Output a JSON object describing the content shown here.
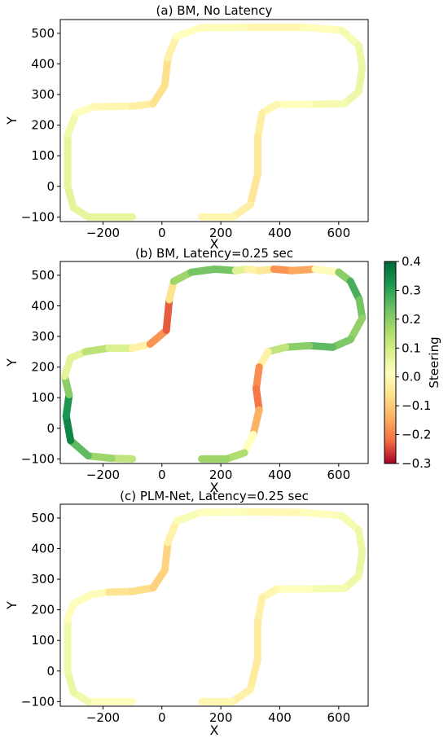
{
  "figure": {
    "colorbar": {
      "label": "Steering",
      "range": [
        -0.3,
        0.4
      ],
      "ticks": [
        "0.4",
        "0.3",
        "0.2",
        "0.1",
        "0.0",
        "−0.1",
        "−0.2",
        "−0.3"
      ],
      "colormap": "RdYlGn",
      "colormap_stops": [
        "#a50026",
        "#f46d43",
        "#fdae61",
        "#fee08b",
        "#ffffbf",
        "#d9ef8b",
        "#a6d96a",
        "#66bd63",
        "#1a9850",
        "#006837"
      ]
    }
  },
  "chart_data": [
    {
      "type": "scatter",
      "title": "(a) BM, No Latency",
      "xlabel": "X",
      "ylabel": "Y",
      "xlim": [
        -345,
        700
      ],
      "ylim": [
        -115,
        545
      ],
      "x_ticks": [
        "−200",
        "0",
        "200",
        "400",
        "600"
      ],
      "x_tick_values": [
        -200,
        0,
        200,
        400,
        600
      ],
      "y_ticks": [
        "−100",
        "0",
        "100",
        "200",
        "300",
        "400",
        "500"
      ],
      "y_tick_values": [
        -100,
        0,
        100,
        200,
        300,
        400,
        500
      ],
      "color_by": "Steering",
      "track": [
        {
          "x": -100,
          "y": -100,
          "s": 0.06
        },
        {
          "x": -250,
          "y": -100,
          "s": 0.06
        },
        {
          "x": -300,
          "y": -70,
          "s": 0.06
        },
        {
          "x": -320,
          "y": 0,
          "s": 0.07
        },
        {
          "x": -320,
          "y": 170,
          "s": 0.05
        },
        {
          "x": -290,
          "y": 240,
          "s": 0.03
        },
        {
          "x": -230,
          "y": 260,
          "s": 0.0
        },
        {
          "x": -100,
          "y": 262,
          "s": -0.02
        },
        {
          "x": -30,
          "y": 270,
          "s": -0.04
        },
        {
          "x": 10,
          "y": 330,
          "s": -0.08
        },
        {
          "x": 20,
          "y": 420,
          "s": -0.05
        },
        {
          "x": 50,
          "y": 490,
          "s": 0.0
        },
        {
          "x": 130,
          "y": 518,
          "s": 0.02
        },
        {
          "x": 300,
          "y": 520,
          "s": -0.02
        },
        {
          "x": 480,
          "y": 520,
          "s": -0.01
        },
        {
          "x": 610,
          "y": 510,
          "s": 0.02
        },
        {
          "x": 668,
          "y": 460,
          "s": 0.04
        },
        {
          "x": 680,
          "y": 390,
          "s": 0.05
        },
        {
          "x": 668,
          "y": 310,
          "s": 0.05
        },
        {
          "x": 620,
          "y": 270,
          "s": 0.04
        },
        {
          "x": 500,
          "y": 268,
          "s": 0.02
        },
        {
          "x": 390,
          "y": 268,
          "s": 0.0
        },
        {
          "x": 340,
          "y": 240,
          "s": -0.02
        },
        {
          "x": 325,
          "y": 160,
          "s": -0.04
        },
        {
          "x": 325,
          "y": 40,
          "s": -0.06
        },
        {
          "x": 300,
          "y": -60,
          "s": -0.04
        },
        {
          "x": 240,
          "y": -100,
          "s": -0.02
        },
        {
          "x": 135,
          "y": -100,
          "s": 0.0
        }
      ]
    },
    {
      "type": "scatter",
      "title": "(b) BM, Latency=0.25 sec",
      "xlabel": "X",
      "ylabel": "Y",
      "xlim": [
        -345,
        700
      ],
      "ylim": [
        -115,
        545
      ],
      "x_ticks": [
        "−200",
        "0",
        "200",
        "400",
        "600"
      ],
      "x_tick_values": [
        -200,
        0,
        200,
        400,
        600
      ],
      "y_ticks": [
        "−100",
        "0",
        "100",
        "200",
        "300",
        "400",
        "500"
      ],
      "y_tick_values": [
        -100,
        0,
        100,
        200,
        300,
        400,
        500
      ],
      "color_by": "Steering",
      "track": [
        {
          "x": -100,
          "y": -100,
          "s": 0.1
        },
        {
          "x": -170,
          "y": -98,
          "s": 0.15
        },
        {
          "x": -250,
          "y": -90,
          "s": 0.2
        },
        {
          "x": -310,
          "y": -40,
          "s": 0.3
        },
        {
          "x": -325,
          "y": 40,
          "s": 0.4
        },
        {
          "x": -315,
          "y": 110,
          "s": 0.25
        },
        {
          "x": -330,
          "y": 170,
          "s": 0.15
        },
        {
          "x": -310,
          "y": 230,
          "s": -0.02
        },
        {
          "x": -260,
          "y": 250,
          "s": 0.15
        },
        {
          "x": -180,
          "y": 262,
          "s": 0.12
        },
        {
          "x": -100,
          "y": 262,
          "s": 0.05
        },
        {
          "x": -40,
          "y": 275,
          "s": -0.1
        },
        {
          "x": 15,
          "y": 320,
          "s": -0.25
        },
        {
          "x": 25,
          "y": 420,
          "s": -0.22
        },
        {
          "x": 40,
          "y": 480,
          "s": 0.1
        },
        {
          "x": 100,
          "y": 510,
          "s": 0.25
        },
        {
          "x": 180,
          "y": 520,
          "s": 0.2
        },
        {
          "x": 250,
          "y": 515,
          "s": 0.25
        },
        {
          "x": 290,
          "y": 520,
          "s": -0.1
        },
        {
          "x": 330,
          "y": 515,
          "s": 0.05
        },
        {
          "x": 380,
          "y": 520,
          "s": -0.15
        },
        {
          "x": 440,
          "y": 515,
          "s": -0.2
        },
        {
          "x": 520,
          "y": 520,
          "s": -0.1
        },
        {
          "x": 600,
          "y": 510,
          "s": 0.1
        },
        {
          "x": 640,
          "y": 480,
          "s": 0.3
        },
        {
          "x": 670,
          "y": 420,
          "s": 0.25
        },
        {
          "x": 680,
          "y": 360,
          "s": 0.2
        },
        {
          "x": 640,
          "y": 290,
          "s": 0.18
        },
        {
          "x": 580,
          "y": 265,
          "s": 0.25
        },
        {
          "x": 500,
          "y": 270,
          "s": 0.25
        },
        {
          "x": 420,
          "y": 265,
          "s": 0.15
        },
        {
          "x": 360,
          "y": 250,
          "s": 0.1
        },
        {
          "x": 330,
          "y": 200,
          "s": -0.15
        },
        {
          "x": 320,
          "y": 130,
          "s": -0.22
        },
        {
          "x": 330,
          "y": 60,
          "s": -0.2
        },
        {
          "x": 310,
          "y": -20,
          "s": -0.08
        },
        {
          "x": 280,
          "y": -80,
          "s": 0.1
        },
        {
          "x": 220,
          "y": -100,
          "s": 0.2
        },
        {
          "x": 135,
          "y": -100,
          "s": 0.15
        }
      ]
    },
    {
      "type": "scatter",
      "title": "(c) PLM-Net, Latency=0.25 sec",
      "xlabel": "X",
      "ylabel": "Y",
      "xlim": [
        -345,
        700
      ],
      "ylim": [
        -115,
        545
      ],
      "x_ticks": [
        "−200",
        "0",
        "200",
        "400",
        "600"
      ],
      "x_tick_values": [
        -200,
        0,
        200,
        400,
        600
      ],
      "y_ticks": [
        "−100",
        "0",
        "100",
        "200",
        "300",
        "400",
        "500"
      ],
      "y_tick_values": [
        -100,
        0,
        100,
        200,
        300,
        400,
        500
      ],
      "color_by": "Steering",
      "track": [
        {
          "x": -100,
          "y": -100,
          "s": 0.0
        },
        {
          "x": -250,
          "y": -100,
          "s": 0.03
        },
        {
          "x": -300,
          "y": -70,
          "s": 0.05
        },
        {
          "x": -320,
          "y": 0,
          "s": 0.05
        },
        {
          "x": -320,
          "y": 170,
          "s": 0.03
        },
        {
          "x": -300,
          "y": 220,
          "s": -0.02
        },
        {
          "x": -240,
          "y": 250,
          "s": 0.05
        },
        {
          "x": -180,
          "y": 258,
          "s": -0.05
        },
        {
          "x": -100,
          "y": 260,
          "s": -0.06
        },
        {
          "x": -30,
          "y": 272,
          "s": -0.08
        },
        {
          "x": 10,
          "y": 330,
          "s": -0.1
        },
        {
          "x": 20,
          "y": 420,
          "s": -0.07
        },
        {
          "x": 50,
          "y": 490,
          "s": 0.02
        },
        {
          "x": 130,
          "y": 518,
          "s": 0.03
        },
        {
          "x": 300,
          "y": 520,
          "s": 0.0
        },
        {
          "x": 480,
          "y": 518,
          "s": -0.01
        },
        {
          "x": 610,
          "y": 508,
          "s": 0.02
        },
        {
          "x": 668,
          "y": 460,
          "s": 0.04
        },
        {
          "x": 680,
          "y": 390,
          "s": 0.05
        },
        {
          "x": 668,
          "y": 310,
          "s": 0.05
        },
        {
          "x": 620,
          "y": 270,
          "s": 0.04
        },
        {
          "x": 500,
          "y": 268,
          "s": 0.02
        },
        {
          "x": 390,
          "y": 268,
          "s": 0.0
        },
        {
          "x": 340,
          "y": 240,
          "s": -0.02
        },
        {
          "x": 325,
          "y": 160,
          "s": -0.03
        },
        {
          "x": 325,
          "y": 40,
          "s": -0.05
        },
        {
          "x": 300,
          "y": -60,
          "s": -0.03
        },
        {
          "x": 240,
          "y": -100,
          "s": -0.02
        },
        {
          "x": 135,
          "y": -100,
          "s": 0.0
        }
      ]
    }
  ]
}
